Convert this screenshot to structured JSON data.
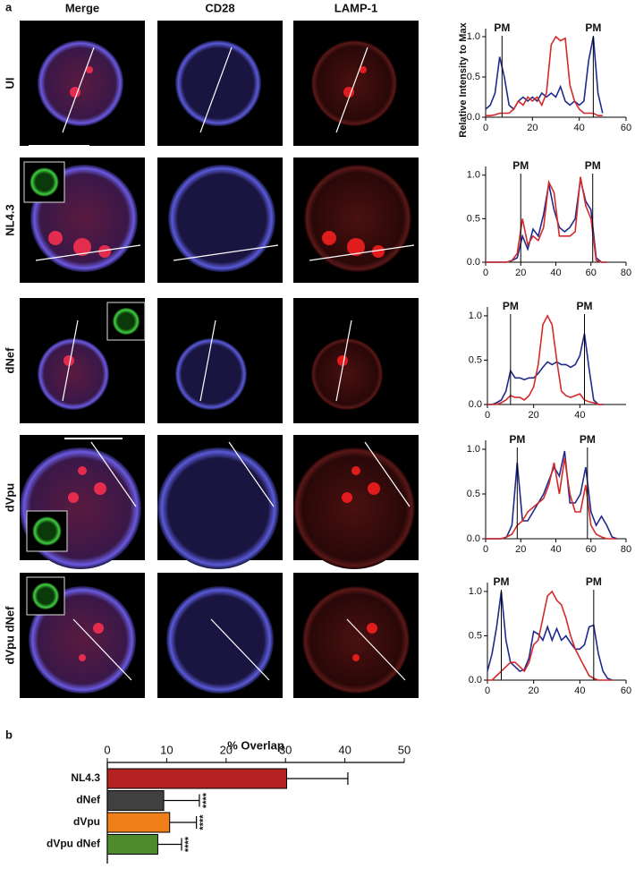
{
  "panel_labels": [
    "a",
    "b"
  ],
  "column_headers": [
    "Merge",
    "CD28",
    "LAMP-1"
  ],
  "row_labels": [
    "UI",
    "NL4.3",
    "dNef",
    "dVpu",
    "dVpu dNef"
  ],
  "chart_data": [
    {
      "type": "line",
      "ylabel": "Relative Intensity to Max",
      "x": [
        0,
        2,
        4,
        6,
        8,
        10,
        12,
        14,
        16,
        18,
        20,
        22,
        24,
        26,
        28,
        30,
        32,
        34,
        36,
        38,
        40,
        42,
        44,
        46,
        48,
        50
      ],
      "series": [
        {
          "color": "#1f2a8c",
          "values": [
            0.1,
            0.15,
            0.3,
            0.75,
            0.5,
            0.15,
            0.1,
            0.2,
            0.25,
            0.2,
            0.25,
            0.2,
            0.3,
            0.25,
            0.3,
            0.25,
            0.38,
            0.2,
            0.15,
            0.2,
            0.15,
            0.2,
            0.7,
            1.0,
            0.3,
            0.05
          ]
        },
        {
          "color": "#d42a2a",
          "values": [
            0.02,
            0.02,
            0.03,
            0.05,
            0.05,
            0.05,
            0.1,
            0.2,
            0.15,
            0.25,
            0.2,
            0.25,
            0.15,
            0.3,
            0.9,
            1.0,
            0.95,
            0.98,
            0.4,
            0.2,
            0.1,
            0.05,
            0.05,
            0.05,
            0.02,
            0.02
          ]
        }
      ],
      "xlim": [
        0,
        60
      ],
      "xticks": [
        0,
        20,
        40,
        60
      ],
      "ylim": [
        0,
        1.1
      ],
      "yticks": [
        {
          "value": 0,
          "label": "0.0"
        },
        0.5,
        {
          "value": 1,
          "label": "1.0"
        }
      ],
      "annotations": [
        {
          "text": "PM",
          "x": 7
        },
        {
          "text": "PM",
          "x": 46
        }
      ]
    },
    {
      "type": "line",
      "x": [
        0,
        3,
        6,
        9,
        12,
        15,
        18,
        21,
        24,
        27,
        30,
        33,
        36,
        39,
        42,
        45,
        48,
        51,
        54,
        57,
        60,
        63,
        66,
        69
      ],
      "series": [
        {
          "color": "#1f2a8c",
          "values": [
            0,
            0,
            0,
            0,
            0,
            0.02,
            0.05,
            0.3,
            0.15,
            0.38,
            0.3,
            0.55,
            0.9,
            0.6,
            0.4,
            0.35,
            0.4,
            0.5,
            0.95,
            0.7,
            0.6,
            0.05,
            0,
            0
          ]
        },
        {
          "color": "#d42a2a",
          "values": [
            0,
            0,
            0,
            0,
            0,
            0.02,
            0.1,
            0.5,
            0.2,
            0.3,
            0.25,
            0.4,
            0.92,
            0.8,
            0.3,
            0.3,
            0.3,
            0.35,
            0.98,
            0.65,
            0.5,
            0.02,
            0,
            0
          ]
        }
      ],
      "xlim": [
        0,
        80
      ],
      "xticks": [
        0,
        20,
        40,
        60,
        80
      ],
      "ylim": [
        0,
        1.1
      ],
      "yticks": [
        {
          "value": 0,
          "label": "0.0"
        },
        0.5,
        {
          "value": 1,
          "label": "1.0"
        }
      ],
      "annotations": [
        {
          "text": "PM",
          "x": 20
        },
        {
          "text": "PM",
          "x": 61
        }
      ]
    },
    {
      "type": "line",
      "x": [
        0,
        2,
        4,
        6,
        8,
        10,
        12,
        14,
        16,
        18,
        20,
        22,
        24,
        26,
        28,
        30,
        32,
        34,
        36,
        38,
        40,
        42,
        44,
        46,
        48,
        50
      ],
      "series": [
        {
          "color": "#1f2a8c",
          "values": [
            0,
            0,
            0.02,
            0.05,
            0.15,
            0.38,
            0.3,
            0.3,
            0.28,
            0.3,
            0.3,
            0.35,
            0.42,
            0.48,
            0.45,
            0.48,
            0.45,
            0.45,
            0.42,
            0.45,
            0.55,
            0.8,
            0.4,
            0.05,
            0,
            0
          ]
        },
        {
          "color": "#d42a2a",
          "values": [
            0,
            0,
            0,
            0.02,
            0.05,
            0.1,
            0.08,
            0.08,
            0.05,
            0.1,
            0.2,
            0.45,
            0.9,
            1.0,
            0.9,
            0.5,
            0.15,
            0.1,
            0.08,
            0.1,
            0.12,
            0.05,
            0.03,
            0.02,
            0,
            0
          ]
        }
      ],
      "xlim": [
        0,
        60
      ],
      "xticks": [
        0,
        20,
        40
      ],
      "ylim": [
        0,
        1.1
      ],
      "yticks": [
        {
          "value": 0,
          "label": "0.0"
        },
        0.5,
        {
          "value": 1,
          "label": "1.0"
        }
      ],
      "annotations": [
        {
          "text": "PM",
          "x": 10
        },
        {
          "text": "PM",
          "x": 42
        }
      ]
    },
    {
      "type": "line",
      "x": [
        0,
        3,
        6,
        9,
        12,
        15,
        18,
        21,
        24,
        27,
        30,
        33,
        36,
        39,
        42,
        45,
        48,
        51,
        54,
        57,
        60,
        63,
        66,
        69,
        72,
        75
      ],
      "series": [
        {
          "color": "#1f2a8c",
          "values": [
            0,
            0,
            0,
            0,
            0.02,
            0.15,
            0.85,
            0.2,
            0.2,
            0.3,
            0.4,
            0.5,
            0.65,
            0.8,
            0.7,
            0.98,
            0.4,
            0.4,
            0.5,
            0.8,
            0.3,
            0.15,
            0.25,
            0.15,
            0.02,
            0
          ]
        },
        {
          "color": "#d42a2a",
          "values": [
            0,
            0,
            0,
            0,
            0.02,
            0.05,
            0.15,
            0.2,
            0.3,
            0.35,
            0.4,
            0.45,
            0.6,
            0.85,
            0.5,
            0.9,
            0.5,
            0.3,
            0.3,
            0.6,
            0.15,
            0.05,
            0.02,
            0,
            0,
            0
          ]
        }
      ],
      "xlim": [
        0,
        80
      ],
      "xticks": [
        0,
        20,
        40,
        60,
        80
      ],
      "ylim": [
        0,
        1.1
      ],
      "yticks": [
        {
          "value": 0,
          "label": "0.0"
        },
        0.5,
        {
          "value": 1,
          "label": "1.0"
        }
      ],
      "annotations": [
        {
          "text": "PM",
          "x": 18
        },
        {
          "text": "PM",
          "x": 58
        }
      ]
    },
    {
      "type": "line",
      "x": [
        0,
        2,
        4,
        6,
        8,
        10,
        12,
        14,
        16,
        18,
        20,
        22,
        24,
        26,
        28,
        30,
        32,
        34,
        36,
        38,
        40,
        42,
        44,
        46,
        48,
        50,
        52,
        54
      ],
      "series": [
        {
          "color": "#1f2a8c",
          "values": [
            0.1,
            0.3,
            0.6,
            1.0,
            0.45,
            0.2,
            0.15,
            0.1,
            0.12,
            0.25,
            0.55,
            0.52,
            0.45,
            0.6,
            0.45,
            0.58,
            0.45,
            0.5,
            0.42,
            0.35,
            0.35,
            0.4,
            0.6,
            0.62,
            0.3,
            0.1,
            0.02,
            0
          ]
        },
        {
          "color": "#d42a2a",
          "values": [
            0,
            0,
            0.05,
            0.1,
            0.15,
            0.2,
            0.2,
            0.15,
            0.1,
            0.2,
            0.4,
            0.45,
            0.7,
            0.95,
            1.0,
            0.9,
            0.85,
            0.7,
            0.5,
            0.35,
            0.25,
            0.15,
            0.05,
            0.02,
            0,
            0,
            0,
            0
          ]
        }
      ],
      "xlim": [
        0,
        60
      ],
      "xticks": [
        0,
        20,
        40,
        60
      ],
      "ylim": [
        0,
        1.1
      ],
      "yticks": [
        {
          "value": 0,
          "label": "0.0"
        },
        0.5,
        {
          "value": 1,
          "label": "1.0"
        }
      ],
      "annotations": [
        {
          "text": "PM",
          "x": 6
        },
        {
          "text": "PM",
          "x": 46
        }
      ]
    },
    {
      "type": "barh",
      "title": "% Overlap",
      "categories": [
        "NL4.3",
        "dNef",
        "dVpu",
        "dVpu dNef"
      ],
      "values": [
        30.2,
        9.5,
        10.5,
        8.5
      ],
      "errors": [
        10.3,
        6,
        4.5,
        4
      ],
      "colors": [
        "#b52222",
        "#404040",
        "#f07f1a",
        "#4f8a2c"
      ],
      "significance": [
        null,
        "****",
        "****",
        "****"
      ],
      "xlim": [
        0,
        50
      ],
      "xticks": [
        0,
        10,
        20,
        30,
        40,
        50
      ]
    }
  ]
}
